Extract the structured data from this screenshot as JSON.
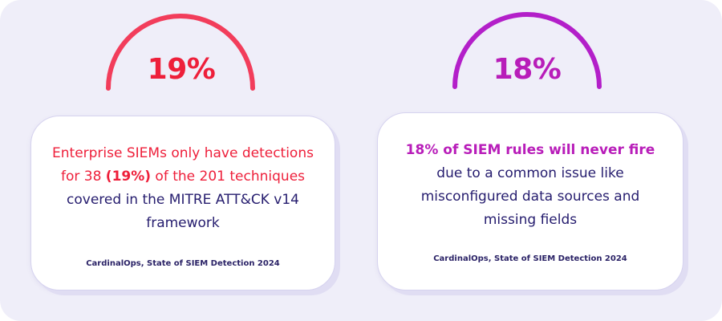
{
  "colors": {
    "background": "#efeef9",
    "red_accent": "#ee1f3a",
    "arc_left": "#f23d5b",
    "magenta_accent": "#b81db9",
    "arc_right": "#b31fc9",
    "body_text": "#251c6e"
  },
  "left_stat": {
    "percent": "19%",
    "text_highlight": "Enterprise SIEMs only have detections for 38 ",
    "text_bold": "(19%)",
    "text_highlight_2": " of the 201 techniques",
    "text_rest": " covered in the MITRE ATT&CK v14 framework",
    "source": "CardinalOps, State of SIEM Detection 2024"
  },
  "right_stat": {
    "percent": "18%",
    "text_highlight": "18% of SIEM rules will never fire",
    "text_rest": " due to a common issue like misconfigured data sources and missing fields",
    "source": "CardinalOps, State of SIEM Detection 2024"
  }
}
